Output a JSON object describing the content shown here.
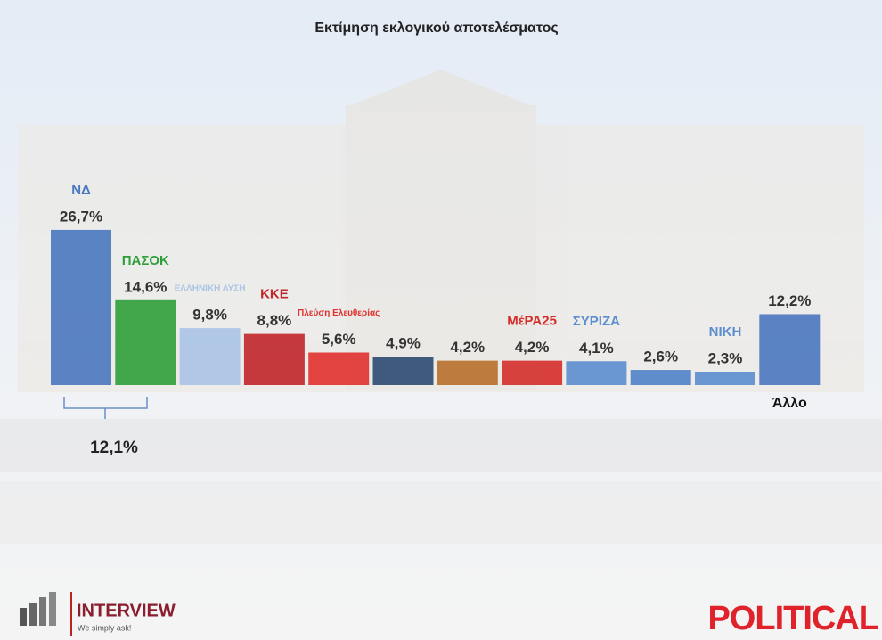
{
  "chart_data": {
    "type": "bar",
    "title": "Εκτίμηση εκλογικού αποτελέσματος",
    "categories": [
      "ΝΔ",
      "ΠΑΣΟΚ",
      "ΕΛΛΗΝΙΚΗ ΛΥΣΗ",
      "ΚΚΕ",
      "Πλεύση Ελευθερίας",
      null,
      null,
      "ΜέΡΑ25",
      "ΣΥΡΙΖΑ",
      null,
      "ΝΙΚΗ",
      "Άλλο"
    ],
    "values": [
      26.7,
      14.6,
      9.8,
      8.8,
      5.6,
      4.9,
      4.2,
      4.2,
      4.1,
      2.6,
      2.3,
      12.2
    ],
    "value_labels": [
      "26,7%",
      "14,6%",
      "9,8%",
      "8,8%",
      "5,6%",
      "4,9%",
      "4,2%",
      "4,2%",
      "4,1%",
      "2,6%",
      "2,3%",
      "12,2%"
    ],
    "colors": [
      "#4a78c0",
      "#2f9e3a",
      "#a9c4e4",
      "#c0262a",
      "#e0312f",
      "#2c4a70",
      "#b8702a",
      "#d42e2a",
      "#5b8ecf",
      "#4f82c8",
      "#5b8ecf",
      "#4a78c0"
    ],
    "annotation": "12,1%"
  },
  "footer": {
    "brand": "INTERVIEW",
    "slogan": "We simply ask!",
    "source": "POLITICAL"
  }
}
